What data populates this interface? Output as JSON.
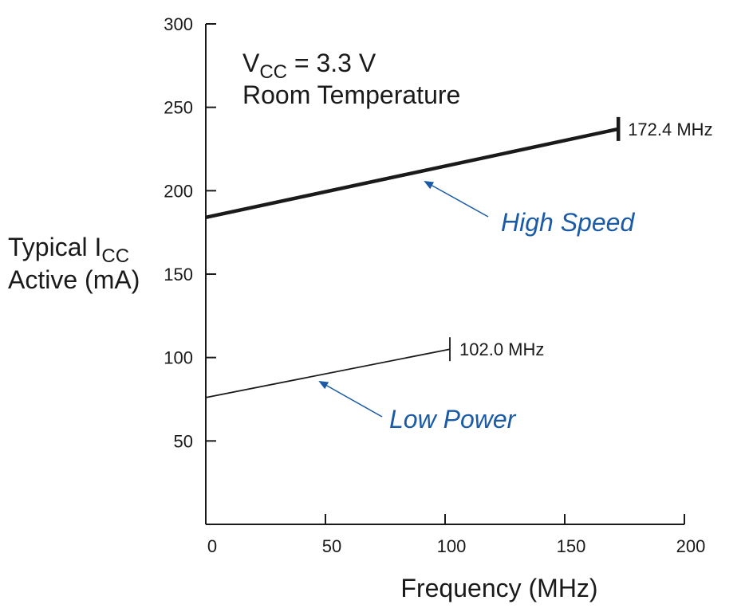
{
  "chart_data": {
    "type": "line",
    "xlabel": "Frequency (MHz)",
    "ylabel_line1": "Typical I",
    "ylabel_line1_sub": "CC",
    "ylabel_line2": "Active (mA)",
    "annotation_line1": "V",
    "annotation_line1_sub": "CC",
    "annotation_line1_rest": " = 3.3 V",
    "annotation_line2": "Room Temperature",
    "xlim": [
      0,
      200
    ],
    "ylim": [
      0,
      300
    ],
    "x_ticks": [
      0,
      50,
      100,
      150,
      200
    ],
    "y_ticks": [
      50,
      100,
      150,
      200,
      250,
      300
    ],
    "grid": false,
    "legend": "none",
    "series": [
      {
        "name": "High Speed",
        "x": [
          0,
          172.4
        ],
        "y": [
          184,
          237
        ],
        "end_label": "172.4 MHz",
        "color": "#1a1a1a",
        "label_color": "#1a5aa6"
      },
      {
        "name": "Low Power",
        "x": [
          0,
          102.0
        ],
        "y": [
          76,
          105
        ],
        "end_label": "102.0 MHz",
        "color": "#1a1a1a",
        "label_color": "#1a5aa6"
      }
    ]
  }
}
